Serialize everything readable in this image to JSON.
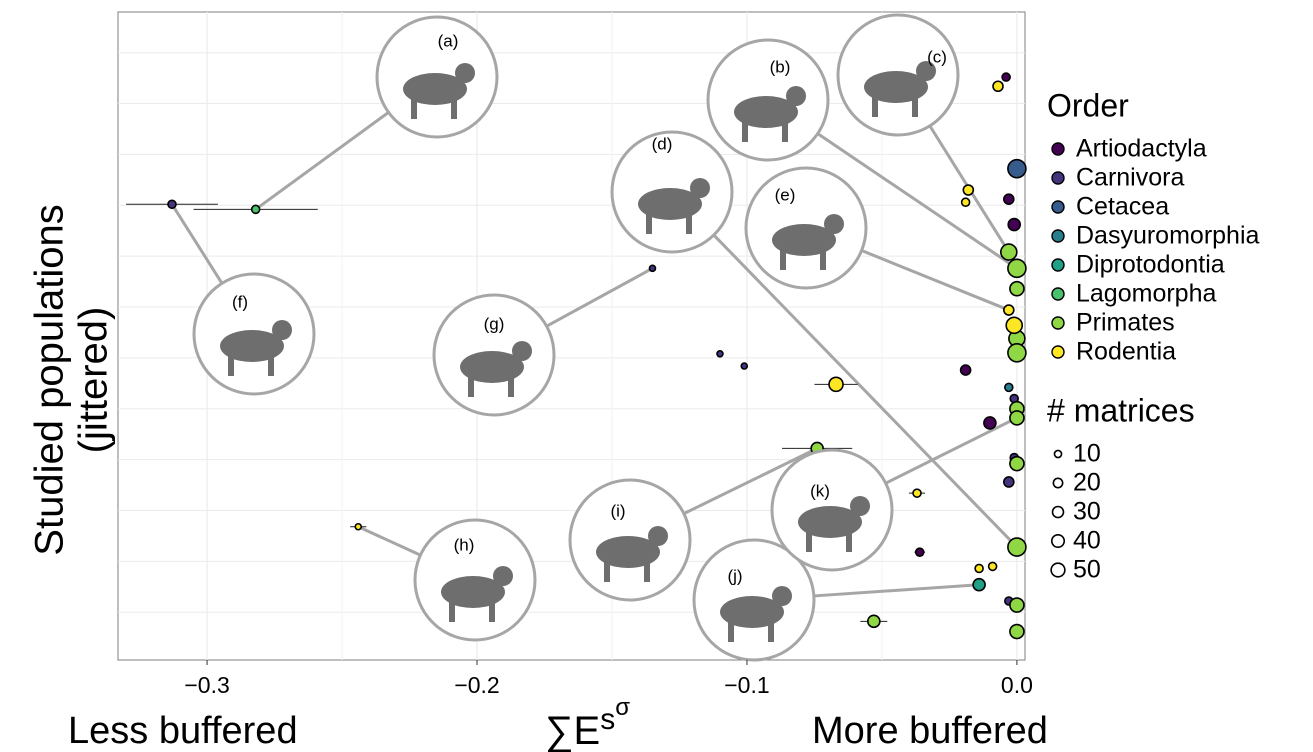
{
  "chart_data": {
    "type": "scatter",
    "xlabel": {
      "base": "∑E",
      "sup": "s",
      "supsup": "σ"
    },
    "xlabel_left": "Less buffered",
    "xlabel_right": "More buffered",
    "ylabel": [
      "Studied populations",
      "(jittered)"
    ],
    "xlim": [
      -0.333,
      0.003
    ],
    "xticks": [
      {
        "value": -0.3,
        "label": "−0.3"
      },
      {
        "value": -0.2,
        "label": "−0.2"
      },
      {
        "value": -0.1,
        "label": "−0.1"
      },
      {
        "value": 0,
        "label": "0.0"
      }
    ],
    "xgrid_minor": [
      -0.25,
      -0.15,
      -0.05
    ],
    "ylim": [
      0.03,
      6.4
    ],
    "ygrid": [
      0.5,
      1,
      1.5,
      2,
      2.5,
      3,
      3.5,
      4,
      4.5,
      5,
      5.5,
      6
    ],
    "grid": true,
    "legend_title": "Order",
    "size_legend": {
      "title": "# matrices",
      "values": [
        10,
        20,
        30,
        40,
        50
      ]
    },
    "series": [
      {
        "name": "Artiodactyla",
        "color": "#440154",
        "x": [
          -0.004,
          -0.003,
          -0.001,
          -0.019,
          -0.01,
          -0.036
        ],
        "y": [
          5.76,
          4.56,
          4.31,
          2.88,
          2.36,
          1.09
        ],
        "matrices": [
          9,
          16,
          25,
          16,
          25,
          9
        ],
        "xerr": [
          null,
          null,
          null,
          null,
          null,
          0.002
        ]
      },
      {
        "name": "Carnivora",
        "color": "#46337e",
        "x": [
          -0.135,
          -0.11,
          -0.101,
          -0.001,
          -0.001,
          -0.003,
          -0.003,
          -0.313
        ],
        "y": [
          3.88,
          3.04,
          2.92,
          2.6,
          2.02,
          1.78,
          0.61,
          4.51
        ],
        "matrices": [
          4,
          4,
          4,
          9,
          9,
          16,
          9,
          9
        ],
        "xerr": [
          null,
          null,
          null,
          null,
          null,
          null,
          null,
          0.017
        ]
      },
      {
        "name": "Cetacea",
        "color": "#365c8d",
        "x": [
          0
        ],
        "y": [
          4.86
        ],
        "matrices": [
          64
        ],
        "xerr": [
          null
        ]
      },
      {
        "name": "Dasyuromorphia",
        "color": "#277f8e",
        "x": [
          -0.003
        ],
        "y": [
          2.71
        ],
        "matrices": [
          9
        ],
        "xerr": [
          null
        ]
      },
      {
        "name": "Diprotodontia",
        "color": "#1fa187",
        "x": [
          -0.014
        ],
        "y": [
          0.77
        ],
        "matrices": [
          25
        ],
        "xerr": [
          null
        ]
      },
      {
        "name": "Lagomorpha",
        "color": "#4ac16d",
        "x": [
          -0.282
        ],
        "y": [
          4.46
        ],
        "matrices": [
          9
        ],
        "xerr": [
          0.023
        ]
      },
      {
        "name": "Primates",
        "color": "#8fd744",
        "x": [
          -0.003,
          0,
          0,
          0,
          0,
          0,
          0,
          -0.074,
          0,
          0,
          0,
          -0.053,
          0
        ],
        "y": [
          4.04,
          3.88,
          3.68,
          3.19,
          3.05,
          2.5,
          2.41,
          2.11,
          1.96,
          1.14,
          0.57,
          0.41,
          0.31
        ],
        "matrices": [
          49,
          64,
          36,
          49,
          64,
          36,
          36,
          25,
          36,
          64,
          36,
          25,
          36
        ],
        "xerr": [
          null,
          null,
          null,
          null,
          null,
          null,
          null,
          0.013,
          null,
          null,
          null,
          0.005,
          null
        ]
      },
      {
        "name": "Rodentia",
        "color": "#fde725",
        "x": [
          -0.007,
          -0.018,
          -0.019,
          -0.003,
          -0.001,
          -0.067,
          -0.037,
          -0.014,
          -0.009,
          -0.244
        ],
        "y": [
          5.67,
          4.65,
          4.53,
          3.47,
          3.32,
          2.74,
          1.67,
          0.93,
          0.95,
          1.34
        ],
        "matrices": [
          16,
          16,
          9,
          16,
          49,
          36,
          9,
          9,
          9,
          4
        ],
        "xerr": [
          null,
          null,
          null,
          null,
          null,
          0.008,
          0.003,
          null,
          null,
          0.003
        ]
      }
    ],
    "annotations": [
      "(a)",
      "(b)",
      "(c)",
      "(d)",
      "(e)",
      "(f)",
      "(g)",
      "(h)",
      "(i)",
      "(j)",
      "(k)"
    ]
  }
}
